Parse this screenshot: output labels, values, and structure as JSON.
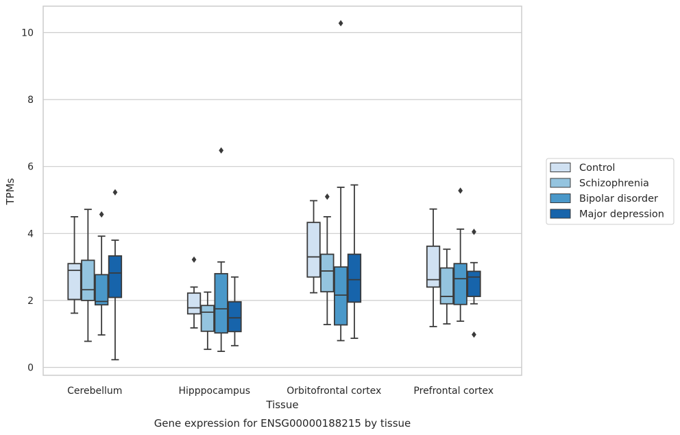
{
  "chart_data": {
    "type": "box",
    "xlabel": "Tissue",
    "ylabel": "TPMs",
    "caption": "Gene expression for ENSG00000188215 by tissue",
    "ylim": [
      -0.25,
      10.8
    ],
    "yticks": [
      0,
      2,
      4,
      6,
      8,
      10
    ],
    "grid": "horizontal",
    "legend_placement": "right",
    "categories": [
      "Cerebellum",
      "Hipppocampus",
      "Orbitofrontal cortex",
      "Prefrontal cortex"
    ],
    "series": [
      {
        "name": "Control",
        "color": "#d0e1f2",
        "boxes": [
          {
            "whislo": 1.62,
            "q1": 2.03,
            "med": 2.9,
            "q3": 3.1,
            "whishi": 4.5,
            "fliers": []
          },
          {
            "whislo": 1.18,
            "q1": 1.6,
            "med": 1.78,
            "q3": 2.22,
            "whishi": 2.4,
            "fliers": [
              3.22
            ]
          },
          {
            "whislo": 2.23,
            "q1": 2.7,
            "med": 3.3,
            "q3": 4.33,
            "whishi": 4.98,
            "fliers": []
          },
          {
            "whislo": 1.22,
            "q1": 2.4,
            "med": 2.62,
            "q3": 3.62,
            "whishi": 4.73,
            "fliers": []
          }
        ]
      },
      {
        "name": "Schizophrenia",
        "color": "#94c4df",
        "boxes": [
          {
            "whislo": 0.78,
            "q1": 2.0,
            "med": 2.32,
            "q3": 3.2,
            "whishi": 4.72,
            "fliers": []
          },
          {
            "whislo": 0.54,
            "q1": 1.08,
            "med": 1.65,
            "q3": 1.85,
            "whishi": 2.25,
            "fliers": []
          },
          {
            "whislo": 1.28,
            "q1": 2.26,
            "med": 2.88,
            "q3": 3.38,
            "whishi": 4.5,
            "fliers": [
              5.1
            ]
          },
          {
            "whislo": 1.3,
            "q1": 1.9,
            "med": 2.12,
            "q3": 2.97,
            "whishi": 3.53,
            "fliers": []
          }
        ]
      },
      {
        "name": "Bipolar disorder",
        "color": "#4a98c9",
        "boxes": [
          {
            "whislo": 0.97,
            "q1": 1.87,
            "med": 1.97,
            "q3": 2.77,
            "whishi": 3.92,
            "fliers": [
              4.57
            ]
          },
          {
            "whislo": 0.48,
            "q1": 1.03,
            "med": 1.75,
            "q3": 2.8,
            "whishi": 3.15,
            "fliers": [
              6.48
            ]
          },
          {
            "whislo": 0.8,
            "q1": 1.27,
            "med": 2.16,
            "q3": 3.0,
            "whishi": 5.38,
            "fliers": [
              10.28
            ]
          },
          {
            "whislo": 1.38,
            "q1": 1.88,
            "med": 2.65,
            "q3": 3.1,
            "whishi": 4.13,
            "fliers": [
              5.28
            ]
          }
        ]
      },
      {
        "name": "Major depression",
        "color": "#1764ab",
        "boxes": [
          {
            "whislo": 0.23,
            "q1": 2.09,
            "med": 2.82,
            "q3": 3.33,
            "whishi": 3.8,
            "fliers": [
              5.23
            ]
          },
          {
            "whislo": 0.65,
            "q1": 1.07,
            "med": 1.48,
            "q3": 1.96,
            "whishi": 2.7,
            "fliers": []
          },
          {
            "whislo": 0.87,
            "q1": 1.95,
            "med": 2.62,
            "q3": 3.38,
            "whishi": 5.45,
            "fliers": []
          },
          {
            "whislo": 1.9,
            "q1": 2.12,
            "med": 2.7,
            "q3": 2.87,
            "whishi": 3.13,
            "fliers": [
              4.05,
              0.98
            ]
          }
        ]
      }
    ]
  }
}
